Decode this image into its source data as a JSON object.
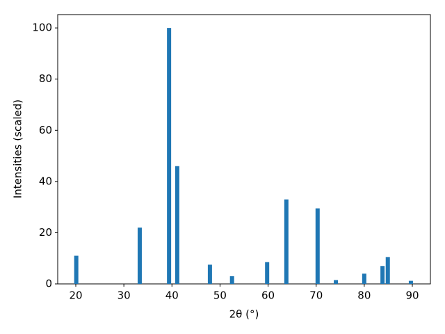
{
  "chart_data": {
    "type": "bar",
    "x": [
      20.1,
      33.3,
      39.4,
      41.1,
      47.9,
      52.5,
      59.8,
      63.8,
      70.3,
      74.1,
      80.0,
      83.8,
      84.9,
      89.7
    ],
    "values": [
      11,
      22,
      100,
      46,
      7.5,
      3,
      8.5,
      33,
      29.5,
      1.5,
      4,
      7,
      10.5,
      1.2
    ],
    "color": "#1f77b4",
    "xlabel": "2θ (°)",
    "ylabel": "Intensities (scaled)",
    "xlim": [
      16.24,
      93.76
    ],
    "xticks": [
      20,
      30,
      40,
      50,
      60,
      70,
      80,
      90
    ],
    "ylim": [
      0,
      105.2
    ],
    "yticks": [
      0,
      20,
      40,
      60,
      80,
      100
    ],
    "grid": false
  }
}
